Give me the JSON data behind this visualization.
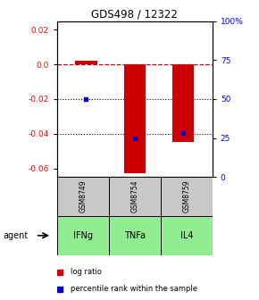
{
  "title": "GDS498 / 12322",
  "categories": [
    "IFNg",
    "TNFa",
    "IL4"
  ],
  "gsm_labels": [
    "GSM8749",
    "GSM8754",
    "GSM8759"
  ],
  "log_ratios": [
    0.002,
    -0.063,
    -0.045
  ],
  "percentile_ranks": [
    50,
    25,
    28
  ],
  "ylim_left": [
    -0.065,
    0.025
  ],
  "yticks_left": [
    0.02,
    0.0,
    -0.02,
    -0.04,
    -0.06
  ],
  "yticks_right_vals": [
    100,
    75,
    50,
    25,
    0
  ],
  "yticks_right_labels": [
    "100%",
    "75",
    "50",
    "25",
    "0"
  ],
  "ylim_right": [
    0,
    100
  ],
  "bar_color": "#cc0000",
  "dot_color": "#0000cc",
  "legend_log": "log ratio",
  "legend_pct": "percentile rank within the sample",
  "cell_color_gsm": "#c8c8c8",
  "cell_color_agent": "#90ee90",
  "bar_width": 0.45
}
